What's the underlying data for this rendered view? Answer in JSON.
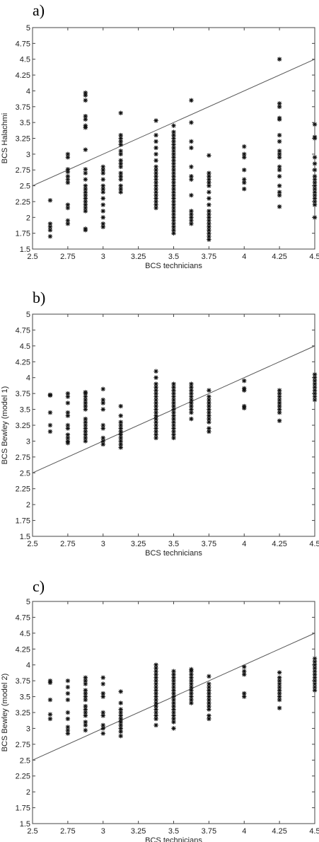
{
  "chart_data": [
    {
      "type": "scatter",
      "panel_label": "a)",
      "xlabel": "BCS technicians",
      "ylabel": "BCS Halachmi",
      "xlim": [
        2.5,
        4.5
      ],
      "ylim": [
        1.5,
        5
      ],
      "xticks": [
        "2.5",
        "2.75",
        "3",
        "3.25",
        "3.5",
        "3.75",
        "4",
        "4.25",
        "4.5"
      ],
      "yticks": [
        "1.5",
        "1.75",
        "2",
        "2.25",
        "2.5",
        "2.75",
        "3",
        "3.25",
        "3.5",
        "3.75",
        "4",
        "4.25",
        "4.5",
        "4.75",
        "5"
      ],
      "grid": false,
      "reference_line": {
        "x": [
          2.5,
          4.5
        ],
        "y": [
          2.5,
          4.5
        ]
      },
      "series": [
        {
          "values": [
            {
              "x": 2.625,
              "y": [
                1.7,
                1.8,
                1.85,
                1.9,
                2.27
              ]
            },
            {
              "x": 2.75,
              "y": [
                1.9,
                1.95,
                2.15,
                2.2,
                2.55,
                2.6,
                2.65,
                2.72,
                2.76,
                2.95,
                3.0
              ]
            },
            {
              "x": 2.875,
              "y": [
                1.8,
                1.82,
                2.1,
                2.15,
                2.2,
                2.25,
                2.3,
                2.35,
                2.4,
                2.45,
                2.5,
                2.6,
                2.7,
                2.76,
                3.07,
                3.42,
                3.45,
                3.55,
                3.6,
                3.85,
                3.93,
                3.97
              ]
            },
            {
              "x": 3.0,
              "y": [
                1.85,
                1.9,
                2.0,
                2.1,
                2.2,
                2.3,
                2.4,
                2.45,
                2.5,
                2.6,
                2.7,
                2.75,
                2.8
              ]
            },
            {
              "x": 3.125,
              "y": [
                2.4,
                2.45,
                2.5,
                2.6,
                2.65,
                2.7,
                2.8,
                2.85,
                2.9,
                3.0,
                3.05,
                3.15,
                3.2,
                3.25,
                3.3,
                3.65
              ]
            },
            {
              "x": 3.375,
              "y": [
                2.15,
                2.2,
                2.25,
                2.3,
                2.35,
                2.4,
                2.45,
                2.5,
                2.55,
                2.6,
                2.65,
                2.7,
                2.75,
                2.8,
                2.9,
                3.0,
                3.1,
                3.2,
                3.3,
                3.53
              ]
            },
            {
              "x": 3.5,
              "y": [
                1.75,
                1.8,
                1.85,
                1.9,
                1.95,
                2.0,
                2.05,
                2.1,
                2.15,
                2.2,
                2.25,
                2.3,
                2.35,
                2.4,
                2.45,
                2.5,
                2.55,
                2.6,
                2.65,
                2.7,
                2.75,
                2.8,
                2.85,
                2.9,
                2.95,
                3.0,
                3.05,
                3.1,
                3.15,
                3.2,
                3.25,
                3.3,
                3.35,
                3.45
              ]
            },
            {
              "x": 3.625,
              "y": [
                1.9,
                1.95,
                2.0,
                2.05,
                2.1,
                2.35,
                2.6,
                2.65,
                2.8,
                3.1,
                3.2,
                3.5,
                3.85
              ]
            },
            {
              "x": 3.75,
              "y": [
                1.65,
                1.7,
                1.75,
                1.8,
                1.85,
                1.9,
                1.95,
                2.0,
                2.05,
                2.1,
                2.2,
                2.3,
                2.4,
                2.5,
                2.55,
                2.6,
                2.65,
                2.7,
                2.98
              ]
            },
            {
              "x": 4.0,
              "y": [
                2.45,
                2.55,
                2.6,
                2.75,
                2.95,
                3.0,
                3.12
              ]
            },
            {
              "x": 4.25,
              "y": [
                2.17,
                2.35,
                2.4,
                2.5,
                2.65,
                2.75,
                2.8,
                2.95,
                3.0,
                3.05,
                3.2,
                3.3,
                3.55,
                3.57,
                3.75,
                3.8,
                4.5
              ]
            },
            {
              "x": 4.5,
              "y": [
                2.0,
                2.2,
                2.25,
                2.3,
                2.35,
                2.4,
                2.45,
                2.5,
                2.55,
                2.6,
                2.65,
                2.75,
                2.85,
                2.95,
                3.25,
                3.27,
                3.47
              ]
            }
          ]
        }
      ]
    },
    {
      "type": "scatter",
      "panel_label": "b)",
      "xlabel": "BCS technicians",
      "ylabel": "BCS Bewley (model 1)",
      "xlim": [
        2.5,
        4.5
      ],
      "ylim": [
        1.5,
        5
      ],
      "xticks": [
        "2.5",
        "2.75",
        "3",
        "3.25",
        "3.5",
        "3.75",
        "4",
        "4.25",
        "4.5"
      ],
      "yticks": [
        "1.5",
        "1.75",
        "2",
        "2.25",
        "2.5",
        "2.75",
        "3",
        "3.25",
        "3.5",
        "3.75",
        "4",
        "4.25",
        "4.5",
        "4.75",
        "5"
      ],
      "grid": false,
      "reference_line": {
        "x": [
          2.5,
          4.5
        ],
        "y": [
          2.5,
          4.5
        ]
      },
      "series": [
        {
          "values": [
            {
              "x": 2.625,
              "y": [
                3.15,
                3.25,
                3.45,
                3.72,
                3.73
              ]
            },
            {
              "x": 2.75,
              "y": [
                2.97,
                3.0,
                3.05,
                3.1,
                3.2,
                3.25,
                3.4,
                3.45,
                3.6,
                3.7,
                3.75
              ]
            },
            {
              "x": 2.875,
              "y": [
                3.0,
                3.05,
                3.1,
                3.15,
                3.2,
                3.25,
                3.3,
                3.35,
                3.5,
                3.55,
                3.6,
                3.65,
                3.7,
                3.75,
                3.77
              ]
            },
            {
              "x": 3.0,
              "y": [
                2.95,
                3.0,
                3.05,
                3.2,
                3.25,
                3.5,
                3.6,
                3.65,
                3.82
              ]
            },
            {
              "x": 3.125,
              "y": [
                2.9,
                2.95,
                3.0,
                3.05,
                3.1,
                3.15,
                3.2,
                3.25,
                3.3,
                3.4,
                3.55
              ]
            },
            {
              "x": 3.375,
              "y": [
                3.05,
                3.1,
                3.15,
                3.2,
                3.25,
                3.3,
                3.35,
                3.4,
                3.45,
                3.5,
                3.55,
                3.6,
                3.65,
                3.7,
                3.75,
                3.8,
                3.85,
                3.9,
                4.0,
                4.1
              ]
            },
            {
              "x": 3.5,
              "y": [
                3.05,
                3.1,
                3.15,
                3.2,
                3.25,
                3.3,
                3.35,
                3.4,
                3.45,
                3.5,
                3.55,
                3.6,
                3.65,
                3.7,
                3.75,
                3.8,
                3.85,
                3.9
              ]
            },
            {
              "x": 3.625,
              "y": [
                3.35,
                3.45,
                3.5,
                3.55,
                3.6,
                3.65,
                3.7,
                3.75,
                3.8,
                3.85,
                3.9
              ]
            },
            {
              "x": 3.75,
              "y": [
                3.15,
                3.2,
                3.3,
                3.35,
                3.4,
                3.45,
                3.5,
                3.55,
                3.6,
                3.65,
                3.7,
                3.8
              ]
            },
            {
              "x": 4.0,
              "y": [
                3.52,
                3.55,
                3.8,
                3.83,
                3.95
              ]
            },
            {
              "x": 4.25,
              "y": [
                3.32,
                3.45,
                3.5,
                3.55,
                3.6,
                3.65,
                3.7,
                3.75,
                3.8
              ]
            },
            {
              "x": 4.5,
              "y": [
                3.65,
                3.7,
                3.75,
                3.8,
                3.85,
                3.9,
                3.95,
                4.0,
                4.05
              ]
            }
          ]
        }
      ]
    },
    {
      "type": "scatter",
      "panel_label": "c)",
      "xlabel": "BCS technicians",
      "ylabel": "BCS Bewley (model 2)",
      "xlim": [
        2.5,
        4.5
      ],
      "ylim": [
        1.5,
        5
      ],
      "xticks": [
        "2.5",
        "2.75",
        "3",
        "3.25",
        "3.5",
        "3.75",
        "4",
        "4.25",
        "4.5"
      ],
      "yticks": [
        "1.5",
        "1.75",
        "2",
        "2.25",
        "2.5",
        "2.75",
        "3",
        "3.25",
        "3.5",
        "3.75",
        "4",
        "4.25",
        "4.5",
        "4.75",
        "5"
      ],
      "grid": false,
      "reference_line": {
        "x": [
          2.5,
          4.5
        ],
        "y": [
          2.5,
          4.5
        ]
      },
      "series": [
        {
          "values": [
            {
              "x": 2.625,
              "y": [
                3.15,
                3.22,
                3.45,
                3.72,
                3.75
              ]
            },
            {
              "x": 2.75,
              "y": [
                2.92,
                2.97,
                3.02,
                3.15,
                3.25,
                3.45,
                3.55,
                3.65,
                3.75
              ]
            },
            {
              "x": 2.875,
              "y": [
                2.97,
                3.05,
                3.1,
                3.2,
                3.25,
                3.3,
                3.35,
                3.45,
                3.5,
                3.55,
                3.6,
                3.7,
                3.75,
                3.8
              ]
            },
            {
              "x": 3.0,
              "y": [
                2.92,
                3.0,
                3.05,
                3.2,
                3.25,
                3.5,
                3.55,
                3.7,
                3.8
              ]
            },
            {
              "x": 3.125,
              "y": [
                2.88,
                2.95,
                3.0,
                3.05,
                3.1,
                3.15,
                3.2,
                3.25,
                3.3,
                3.4,
                3.58
              ]
            },
            {
              "x": 3.375,
              "y": [
                3.05,
                3.15,
                3.2,
                3.25,
                3.3,
                3.35,
                3.4,
                3.45,
                3.5,
                3.55,
                3.6,
                3.65,
                3.7,
                3.75,
                3.8,
                3.85,
                3.9,
                3.95,
                4.0
              ]
            },
            {
              "x": 3.5,
              "y": [
                3.0,
                3.1,
                3.15,
                3.2,
                3.25,
                3.3,
                3.35,
                3.4,
                3.45,
                3.5,
                3.55,
                3.6,
                3.65,
                3.7,
                3.75,
                3.8,
                3.85,
                3.9
              ]
            },
            {
              "x": 3.625,
              "y": [
                3.4,
                3.45,
                3.5,
                3.55,
                3.6,
                3.65,
                3.7,
                3.75,
                3.8,
                3.85,
                3.9,
                3.93
              ]
            },
            {
              "x": 3.75,
              "y": [
                3.15,
                3.2,
                3.3,
                3.35,
                3.4,
                3.45,
                3.5,
                3.55,
                3.6,
                3.65,
                3.7,
                3.82
              ]
            },
            {
              "x": 4.0,
              "y": [
                3.5,
                3.55,
                3.85,
                3.9,
                3.97
              ]
            },
            {
              "x": 4.25,
              "y": [
                3.32,
                3.45,
                3.5,
                3.55,
                3.6,
                3.65,
                3.7,
                3.75,
                3.8,
                3.88
              ]
            },
            {
              "x": 4.5,
              "y": [
                3.6,
                3.65,
                3.7,
                3.75,
                3.8,
                3.85,
                3.9,
                3.95,
                4.0,
                4.05,
                4.1
              ]
            }
          ]
        }
      ]
    }
  ]
}
